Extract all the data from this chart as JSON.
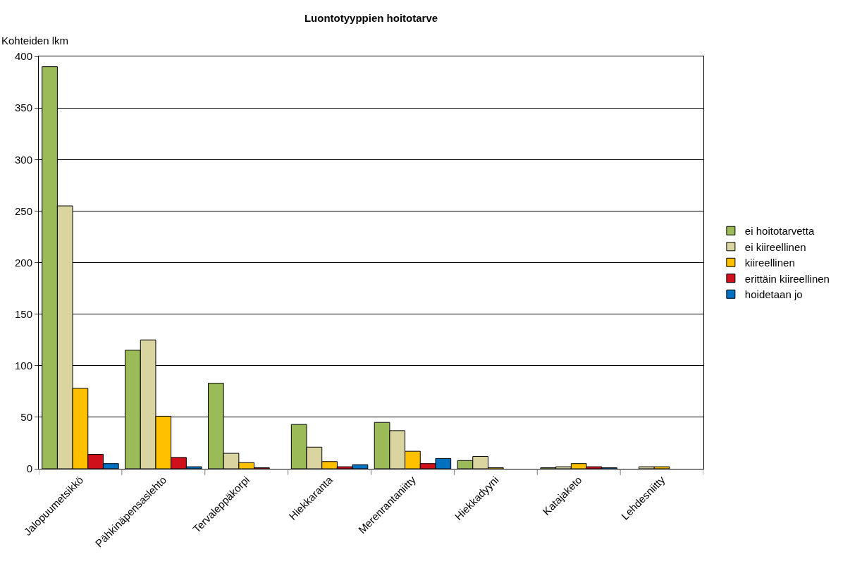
{
  "chart_data": {
    "type": "bar",
    "title": "Luontotyyppien hoitotarve",
    "ylabel": "Kohteiden lkm",
    "categories": [
      "Jalopuumetsikkö",
      "Pähkinäpensaslehto",
      "Tervaleppäkorpi",
      "Hiekkaranta",
      "Merenrantaniitty",
      "Hiekkadyyni",
      "Katajaketo",
      "Lehdesniitty"
    ],
    "series": [
      {
        "name": "ei hoitotarvetta",
        "color": "#9bbb59",
        "values": [
          390,
          115,
          83,
          43,
          45,
          8,
          1,
          null
        ]
      },
      {
        "name": "ei kiireellinen",
        "color": "#d9d4a0",
        "values": [
          255,
          125,
          15,
          21,
          37,
          12,
          2,
          2
        ]
      },
      {
        "name": "kiireellinen",
        "color": "#ffc000",
        "values": [
          78,
          51,
          6,
          7,
          17,
          1,
          5,
          2
        ]
      },
      {
        "name": "erittäin kiireellinen",
        "color": "#d0111b",
        "values": [
          14,
          11,
          1,
          2,
          5,
          null,
          2,
          null
        ]
      },
      {
        "name": "hoidetaan jo",
        "color": "#0070c0",
        "values": [
          5,
          2,
          null,
          4,
          10,
          null,
          1,
          null
        ]
      }
    ],
    "ylim": [
      0,
      400
    ],
    "yticks": [
      0,
      50,
      100,
      150,
      200,
      250,
      300,
      350,
      400
    ],
    "grid": "y",
    "legend": "right"
  }
}
